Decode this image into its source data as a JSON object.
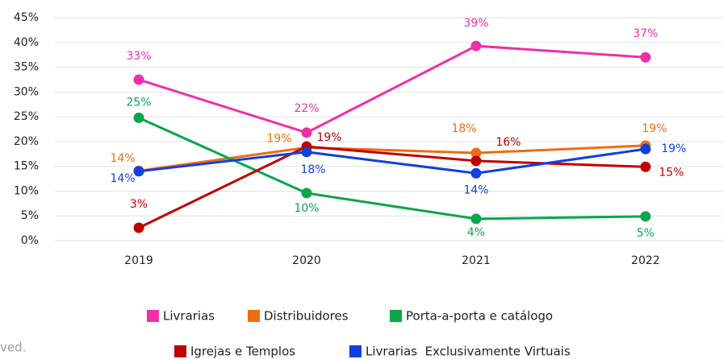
{
  "chart_data": {
    "type": "line",
    "categories": [
      "2019",
      "2020",
      "2021",
      "2022"
    ],
    "ylim": [
      0,
      45
    ],
    "yticks": [
      {
        "value": 0,
        "label": "0%"
      },
      {
        "value": 5,
        "label": "5%"
      },
      {
        "value": 10,
        "label": "10%"
      },
      {
        "value": 15,
        "label": "15%"
      },
      {
        "value": 20,
        "label": "20%"
      },
      {
        "value": 25,
        "label": "25%"
      },
      {
        "value": 30,
        "label": "30%"
      },
      {
        "value": 35,
        "label": "35%"
      },
      {
        "value": 40,
        "label": "40%"
      },
      {
        "value": 45,
        "label": "45%"
      }
    ],
    "grid": true,
    "series": [
      {
        "name": "Livrarias",
        "color": "#ee2fa8",
        "values": [
          32.5,
          21.8,
          39.3,
          37.0
        ],
        "value_labels": [
          "33%",
          "22%",
          "39%",
          "37%"
        ]
      },
      {
        "name": "Distribuidores",
        "color": "#ee6c10",
        "values": [
          14.1,
          18.8,
          17.7,
          19.2
        ],
        "value_labels": [
          "14%",
          "19%",
          "18%",
          "19%"
        ]
      },
      {
        "name": "Porta-a-porta e catálogo",
        "color": "#0aa64a",
        "values": [
          24.8,
          9.6,
          4.4,
          4.9
        ],
        "value_labels": [
          "25%",
          "10%",
          "4%",
          "5%"
        ]
      },
      {
        "name": "Igrejas e Templos",
        "color": "#c00000",
        "values": [
          2.6,
          19.0,
          16.1,
          14.9
        ],
        "value_labels": [
          "3%",
          "19%",
          "16%",
          "15%"
        ]
      },
      {
        "name": "Livrarias  Exclusivamente Virtuais",
        "color": "#1040e0",
        "values": [
          14.0,
          17.9,
          13.6,
          18.5
        ],
        "value_labels": [
          "14%",
          "18%",
          "14%",
          "19%"
        ]
      }
    ]
  },
  "footer": "ved."
}
